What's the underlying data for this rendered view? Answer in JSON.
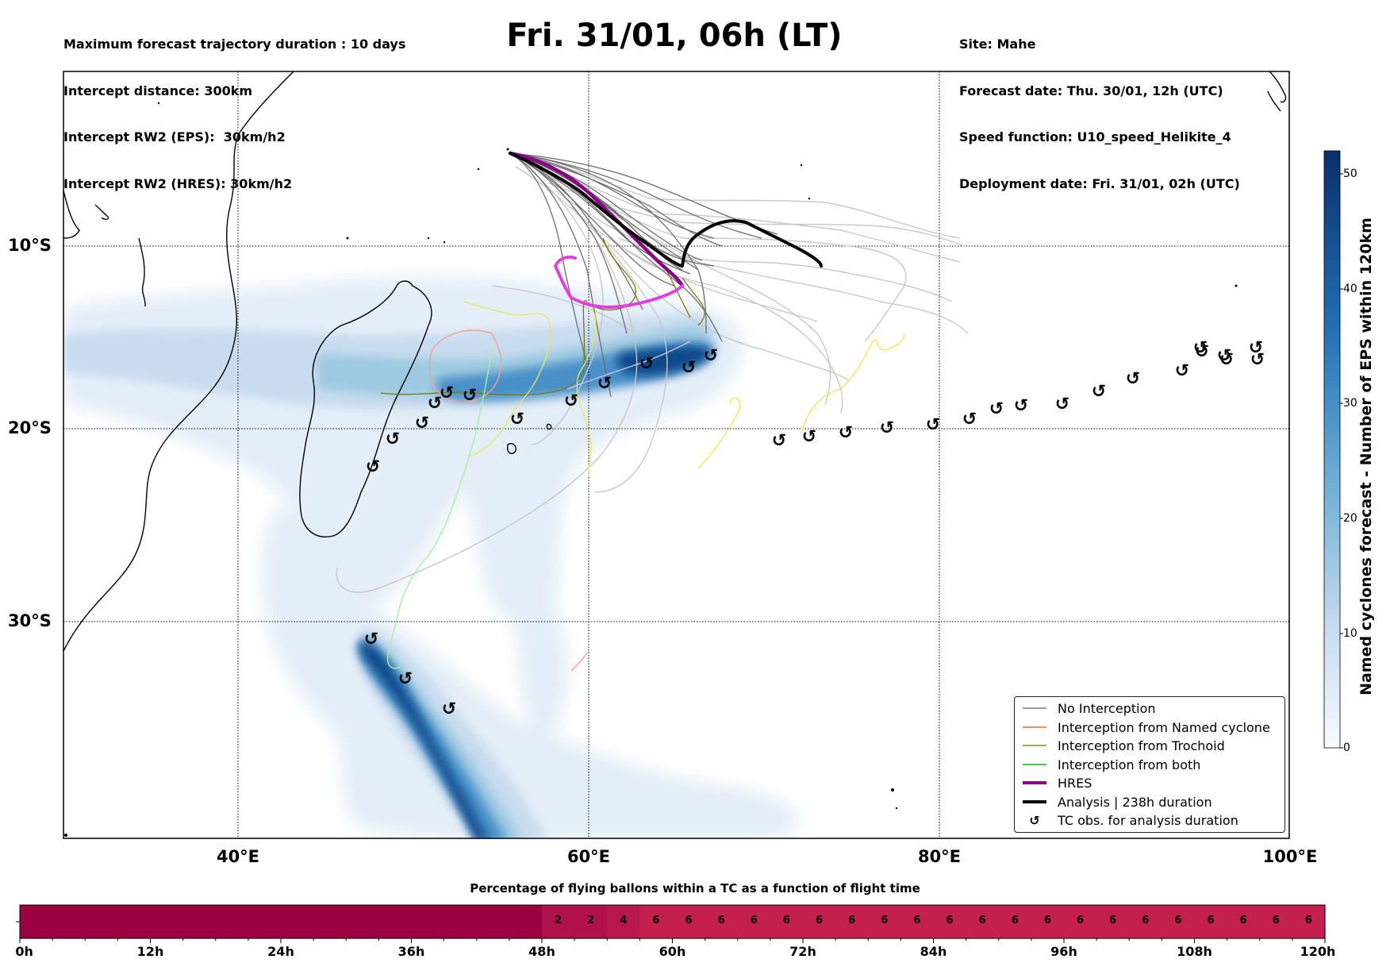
{
  "header": {
    "left_lines": [
      "Maximum forecast trajectory duration : 10 days",
      "Intercept distance: 300km",
      "Intercept RW2 (EPS):  30km/h2",
      "Intercept RW2 (HRES): 30km/h2"
    ],
    "title": "Fri. 31/01, 06h (LT)",
    "right_lines": [
      "Site: Mahe",
      "Forecast date: Thu. 30/01, 12h (UTC)",
      "Speed function: U10_speed_Helikite_4",
      "Deployment date: Fri. 31/01, 02h (UTC)"
    ]
  },
  "map": {
    "lat_labels": [
      "10°S",
      "20°S",
      "30°S"
    ],
    "lon_labels": [
      "40°E",
      "60°E",
      "80°E",
      "100°E"
    ]
  },
  "colorbar": {
    "title": "Named cyclones forecast - Number of EPS within 120km",
    "ticks": [
      "0",
      "10",
      "20",
      "30",
      "40",
      "50"
    ],
    "range": [
      0,
      52
    ]
  },
  "legend": {
    "items": [
      {
        "label": "No Interception",
        "color": "#7f7f7f"
      },
      {
        "label": "Interception from Named cyclone",
        "color": "#ff6633"
      },
      {
        "label": "Interception from Trochoid",
        "color": "#8a8a1a"
      },
      {
        "label": "Interception from both",
        "color": "#1faa1f"
      },
      {
        "label": "HRES",
        "color": "#8b008b"
      },
      {
        "label": "Analysis | 238h duration",
        "color": "#000000"
      },
      {
        "label": "TC obs. for analysis duration",
        "color": "#000000"
      }
    ]
  },
  "tc_symbol": "↺",
  "flight_time_bar": {
    "title": "Percentage of flying ballons within a TC as a function of flight time",
    "hours": [
      0,
      3,
      6,
      9,
      12,
      15,
      18,
      21,
      24,
      27,
      30,
      33,
      36,
      39,
      42,
      45,
      48,
      51,
      54,
      57,
      60,
      63,
      66,
      69,
      72,
      75,
      78,
      81,
      84,
      87,
      90,
      93,
      96,
      99,
      102,
      105,
      108,
      111,
      114,
      117,
      120
    ],
    "percent": [
      0,
      0,
      0,
      0,
      0,
      0,
      0,
      0,
      0,
      0,
      0,
      0,
      0,
      0,
      0,
      0,
      2,
      2,
      4,
      6,
      6,
      6,
      6,
      6,
      6,
      6,
      6,
      6,
      6,
      6,
      6,
      6,
      6,
      6,
      6,
      6,
      6,
      6,
      6,
      6
    ],
    "cell_labels": [
      "2",
      "2",
      "4",
      "6",
      "6",
      "6",
      "6",
      "6",
      "6",
      "6",
      "6",
      "6",
      "6",
      "6",
      "6",
      "6",
      "6",
      "6",
      "6",
      "6",
      "6",
      "6",
      "6",
      "6"
    ],
    "tick_labels": [
      "0h",
      "12h",
      "24h",
      "36h",
      "48h",
      "60h",
      "72h",
      "84h",
      "96h",
      "108h",
      "120h"
    ]
  }
}
